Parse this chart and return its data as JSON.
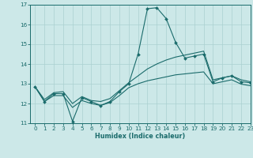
{
  "x": [
    0,
    1,
    2,
    3,
    4,
    5,
    6,
    7,
    8,
    9,
    10,
    11,
    12,
    13,
    14,
    15,
    16,
    17,
    18,
    19,
    20,
    21,
    22,
    23
  ],
  "line_main": [
    12.85,
    12.1,
    12.5,
    12.5,
    11.1,
    12.3,
    12.1,
    11.9,
    12.1,
    12.6,
    13.0,
    14.5,
    16.8,
    16.85,
    16.3,
    15.1,
    14.3,
    14.4,
    14.5,
    13.1,
    13.3,
    13.4,
    13.1,
    13.05
  ],
  "line_upper": [
    12.85,
    12.2,
    12.55,
    12.6,
    12.0,
    12.35,
    12.15,
    12.1,
    12.25,
    12.65,
    13.05,
    13.4,
    13.75,
    14.0,
    14.2,
    14.35,
    14.45,
    14.55,
    14.65,
    13.2,
    13.3,
    13.4,
    13.2,
    13.1
  ],
  "line_lower": [
    12.85,
    12.1,
    12.4,
    12.4,
    11.8,
    12.15,
    12.0,
    11.9,
    12.05,
    12.4,
    12.8,
    13.0,
    13.15,
    13.25,
    13.35,
    13.45,
    13.5,
    13.55,
    13.6,
    13.0,
    13.1,
    13.2,
    12.98,
    12.9
  ],
  "bg_color": "#cce8e8",
  "grid_color": "#aad0d0",
  "line_color": "#1a6b6b",
  "xlim": [
    -0.5,
    23
  ],
  "ylim": [
    11,
    17
  ],
  "yticks": [
    11,
    12,
    13,
    14,
    15,
    16,
    17
  ],
  "xticks": [
    0,
    1,
    2,
    3,
    4,
    5,
    6,
    7,
    8,
    9,
    10,
    11,
    12,
    13,
    14,
    15,
    16,
    17,
    18,
    19,
    20,
    21,
    22,
    23
  ],
  "xlabel": "Humidex (Indice chaleur)",
  "marker": "D",
  "markersize": 2.0,
  "linewidth": 0.8
}
